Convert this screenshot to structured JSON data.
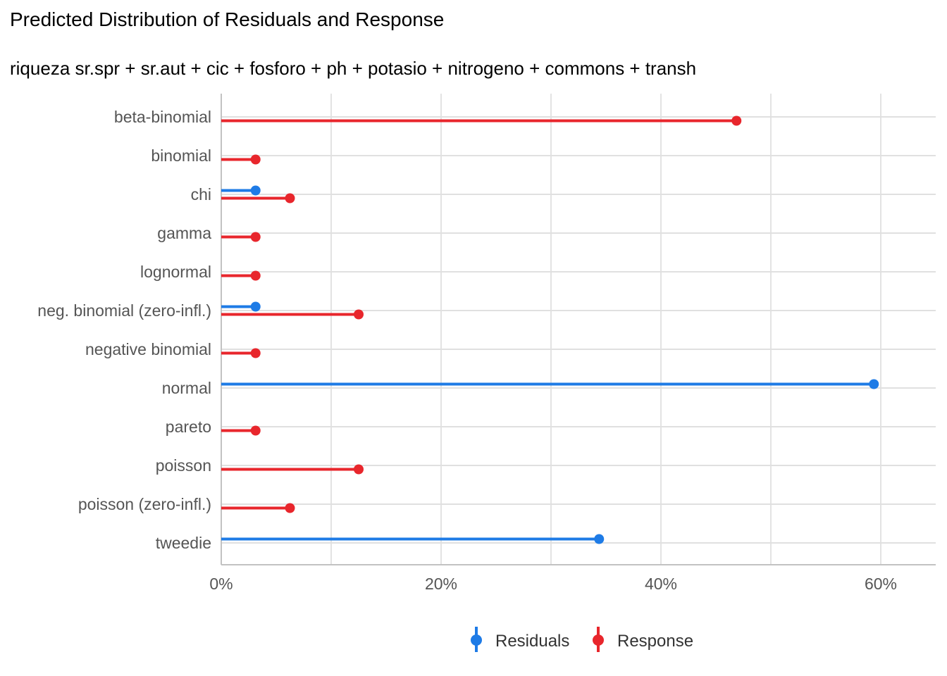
{
  "chart_data": {
    "type": "lollipop",
    "title": "Predicted Distribution of Residuals and Response",
    "subtitle": "riqueza sr.spr + sr.aut + cic + fosforo + ph + potasio + nitrogeno + commons + transh",
    "xlabel": "",
    "ylabel": "",
    "xlim": [
      0,
      0.65
    ],
    "x_ticks": [
      0,
      0.2,
      0.4,
      0.6
    ],
    "x_tick_labels": [
      "0%",
      "20%",
      "40%",
      "60%"
    ],
    "categories": [
      "beta-binomial",
      "binomial",
      "chi",
      "gamma",
      "lognormal",
      "neg. binomial (zero-infl.)",
      "negative binomial",
      "normal",
      "pareto",
      "poisson",
      "poisson (zero-infl.)",
      "tweedie"
    ],
    "series": [
      {
        "name": "Residuals",
        "color": "#1E7BE6",
        "values": [
          null,
          null,
          0.03125,
          null,
          null,
          0.03125,
          null,
          0.59375,
          null,
          null,
          null,
          0.34375
        ]
      },
      {
        "name": "Response",
        "color": "#E8262C",
        "values": [
          0.46875,
          0.03125,
          0.0625,
          0.03125,
          0.03125,
          0.125,
          0.03125,
          null,
          0.03125,
          0.125,
          0.0625,
          null
        ]
      }
    ],
    "grid": true,
    "legend_position": "bottom"
  }
}
